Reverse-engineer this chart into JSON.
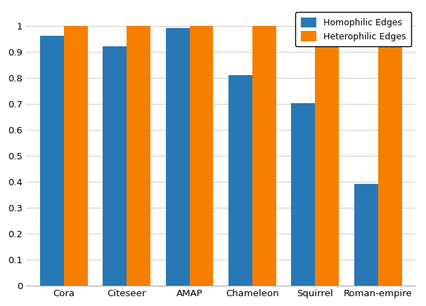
{
  "categories": [
    "Cora",
    "Citeseer",
    "AMAP",
    "Chameleon",
    "Squirrel",
    "Roman-empire"
  ],
  "homophilic": [
    0.961,
    0.921,
    0.991,
    0.811,
    0.704,
    0.392
  ],
  "heterophilic": [
    1.0,
    1.0,
    1.0,
    1.0,
    0.93,
    0.969
  ],
  "homophilic_color": "#2878b5",
  "heterophilic_color": "#f77f00",
  "legend_labels": [
    "Homophilic Edges",
    "Heterophilic Edges"
  ],
  "ylim": [
    0,
    1.07
  ],
  "yticks": [
    0,
    0.1,
    0.2,
    0.3,
    0.4,
    0.5,
    0.6,
    0.7,
    0.8,
    0.9,
    1
  ],
  "bar_width": 0.38,
  "grid_color": "#d0d0d0",
  "tick_fontsize": 9.5,
  "legend_fontsize": 9
}
